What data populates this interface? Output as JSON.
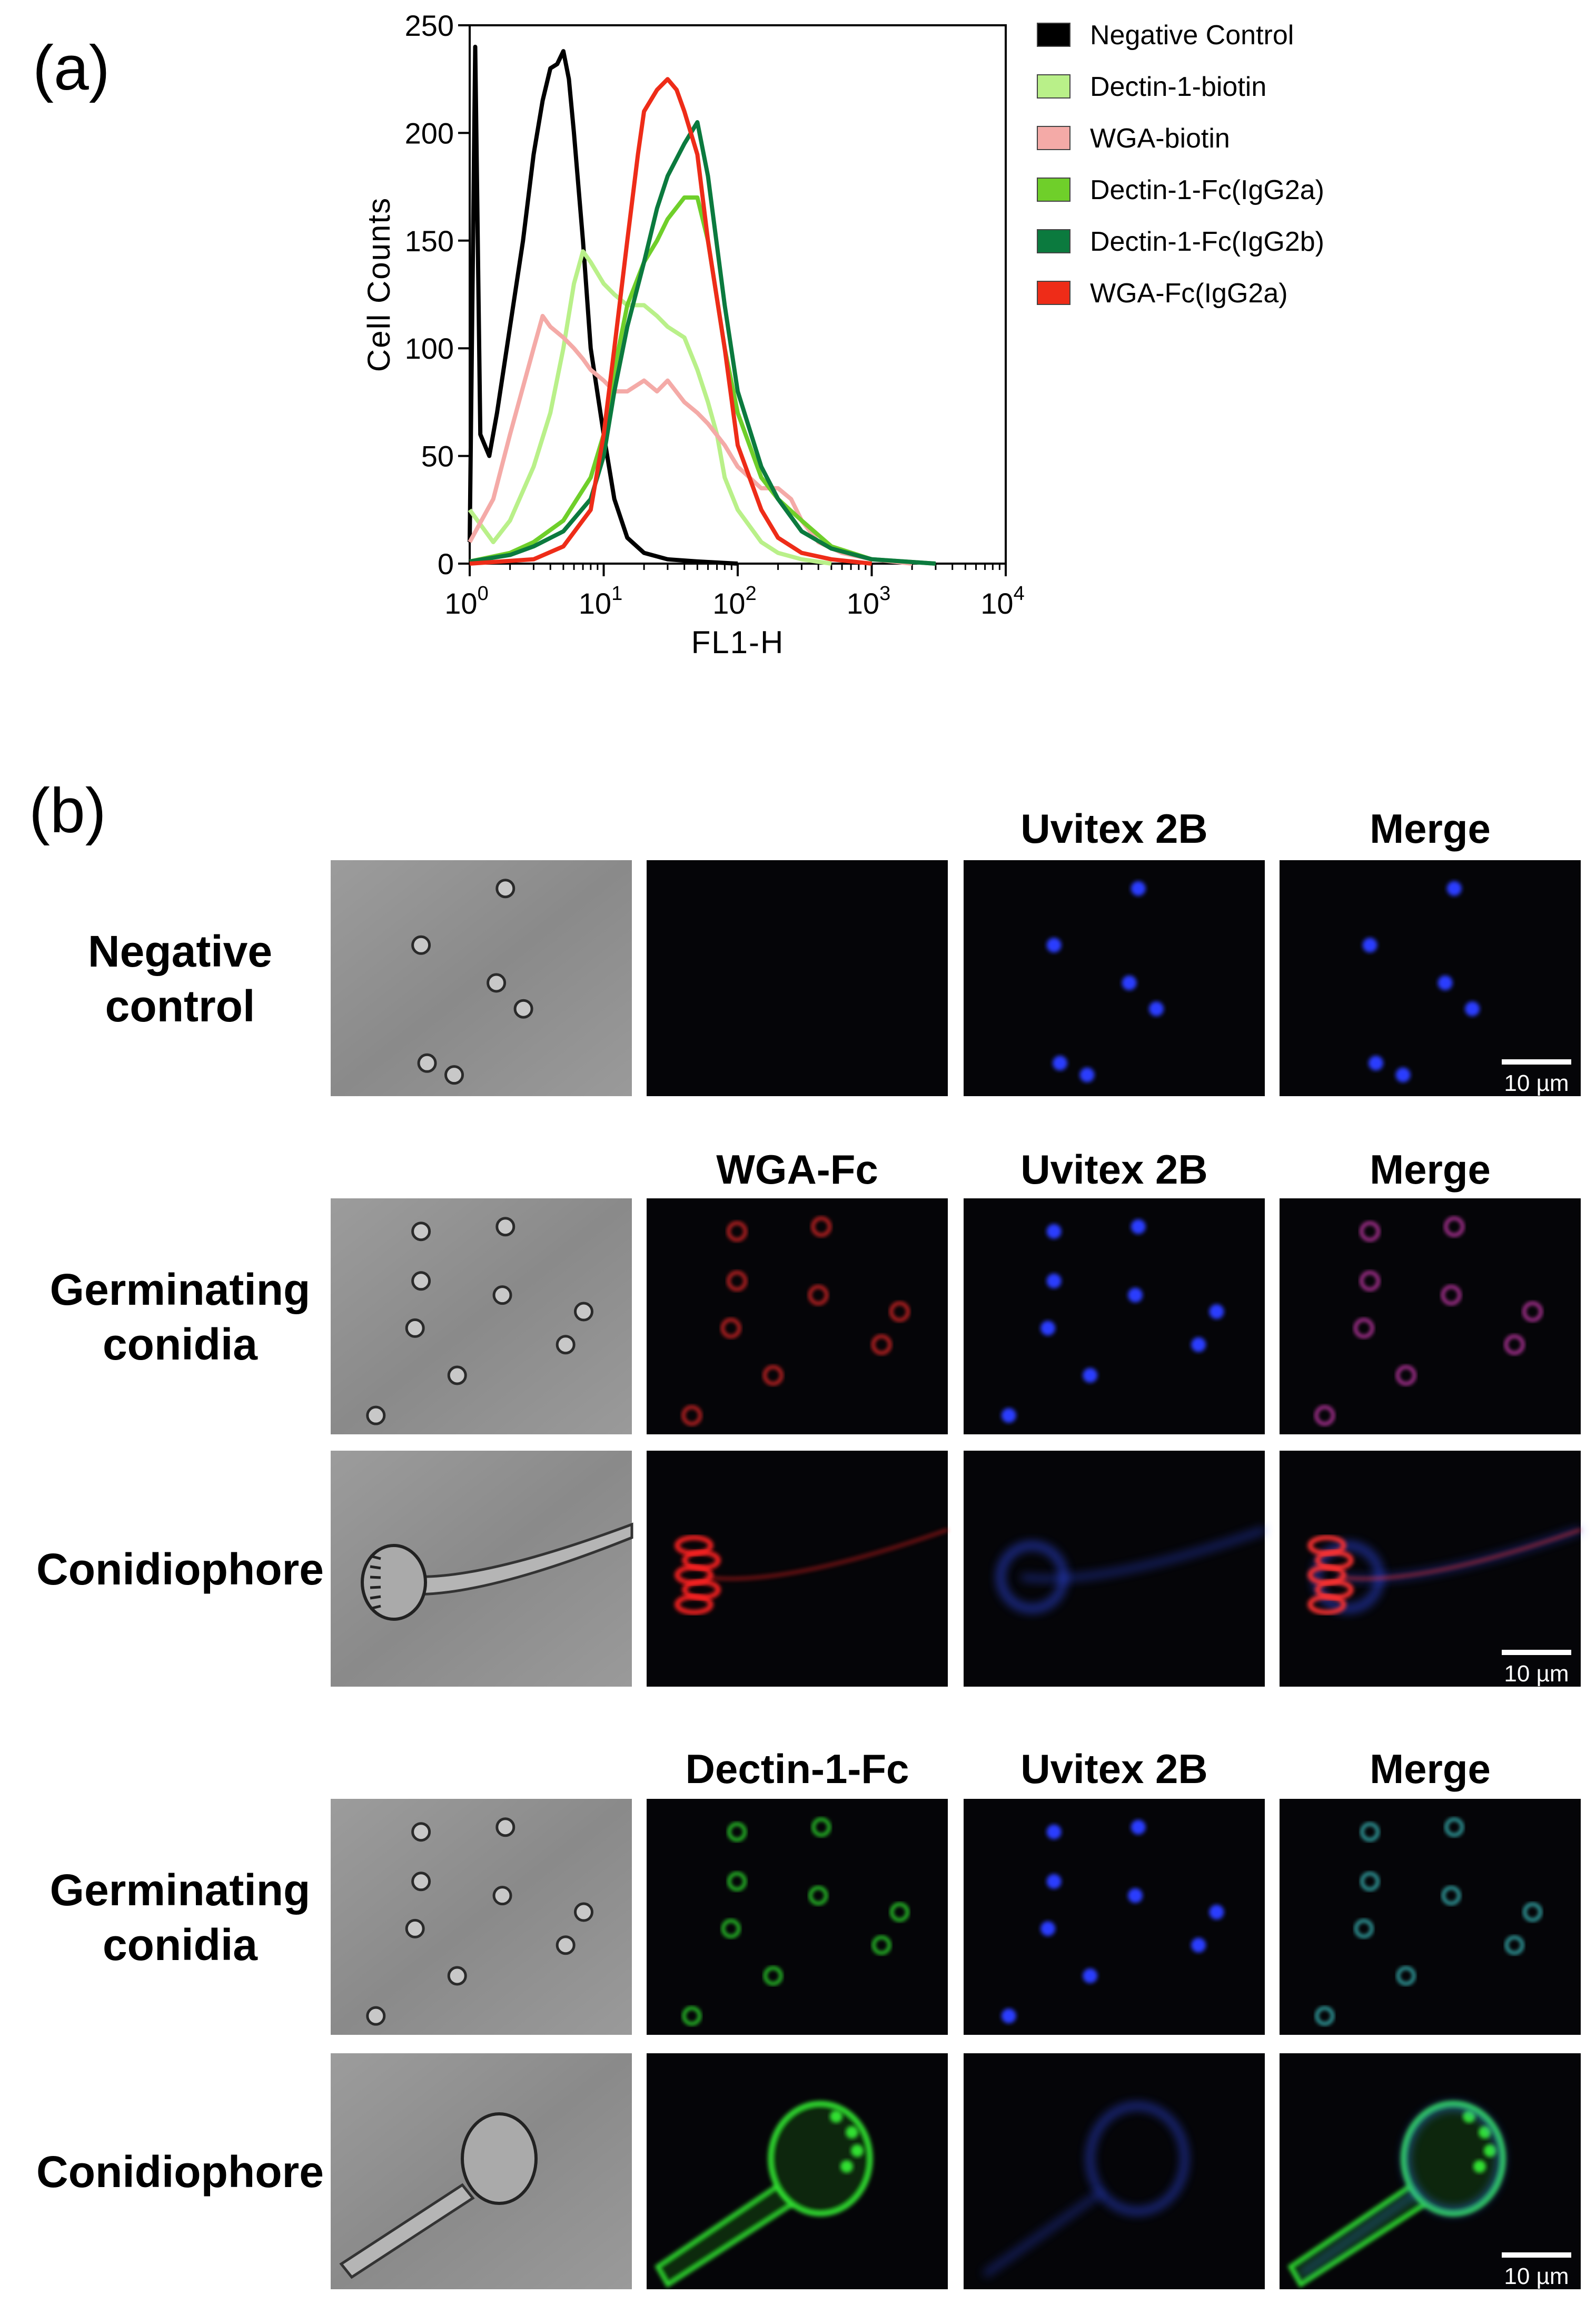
{
  "panel_a": {
    "label": "(a)",
    "chart_data": {
      "type": "line",
      "xlabel": "FL1-H",
      "ylabel": "Cell Counts",
      "xscale": "log",
      "xlim": [
        1,
        10000
      ],
      "ylim": [
        0,
        250
      ],
      "yticks": [
        "0",
        "50",
        "100",
        "150",
        "200",
        "250"
      ],
      "xticks": [
        {
          "base": "10",
          "exp": "0"
        },
        {
          "base": "10",
          "exp": "1"
        },
        {
          "base": "10",
          "exp": "2"
        },
        {
          "base": "10",
          "exp": "3"
        },
        {
          "base": "10",
          "exp": "4"
        }
      ],
      "legend_position": "right",
      "series": [
        {
          "name": "Negative Control",
          "color": "#000000",
          "points": [
            [
              1.0,
              10
            ],
            [
              1.1,
              240
            ],
            [
              1.2,
              60
            ],
            [
              1.4,
              50
            ],
            [
              1.6,
              70
            ],
            [
              2,
              110
            ],
            [
              2.5,
              150
            ],
            [
              3,
              190
            ],
            [
              3.5,
              215
            ],
            [
              4,
              230
            ],
            [
              4.5,
              232
            ],
            [
              5,
              238
            ],
            [
              5.5,
              225
            ],
            [
              6,
              200
            ],
            [
              7,
              150
            ],
            [
              8,
              100
            ],
            [
              10,
              60
            ],
            [
              12,
              30
            ],
            [
              15,
              12
            ],
            [
              20,
              5
            ],
            [
              30,
              2
            ],
            [
              50,
              1
            ],
            [
              100,
              0
            ]
          ]
        },
        {
          "name": "Dectin-1-biotin",
          "color": "#b9f089",
          "points": [
            [
              1,
              25
            ],
            [
              1.5,
              10
            ],
            [
              2,
              20
            ],
            [
              3,
              45
            ],
            [
              4,
              70
            ],
            [
              5,
              100
            ],
            [
              6,
              130
            ],
            [
              7,
              145
            ],
            [
              8,
              140
            ],
            [
              10,
              130
            ],
            [
              12,
              125
            ],
            [
              15,
              120
            ],
            [
              20,
              120
            ],
            [
              25,
              115
            ],
            [
              30,
              110
            ],
            [
              40,
              105
            ],
            [
              50,
              90
            ],
            [
              60,
              75
            ],
            [
              70,
              60
            ],
            [
              80,
              40
            ],
            [
              100,
              25
            ],
            [
              150,
              10
            ],
            [
              200,
              5
            ],
            [
              300,
              2
            ],
            [
              500,
              0
            ]
          ]
        },
        {
          "name": "WGA-biotin",
          "color": "#f4aaa7",
          "points": [
            [
              1,
              10
            ],
            [
              1.5,
              30
            ],
            [
              2,
              60
            ],
            [
              3,
              100
            ],
            [
              3.5,
              115
            ],
            [
              4,
              110
            ],
            [
              5,
              105
            ],
            [
              6,
              100
            ],
            [
              7,
              95
            ],
            [
              8,
              90
            ],
            [
              10,
              85
            ],
            [
              12,
              80
            ],
            [
              15,
              80
            ],
            [
              20,
              85
            ],
            [
              25,
              80
            ],
            [
              30,
              85
            ],
            [
              40,
              75
            ],
            [
              50,
              70
            ],
            [
              60,
              65
            ],
            [
              80,
              55
            ],
            [
              100,
              45
            ],
            [
              150,
              35
            ],
            [
              200,
              35
            ],
            [
              250,
              30
            ],
            [
              300,
              20
            ],
            [
              400,
              10
            ],
            [
              600,
              5
            ],
            [
              1000,
              2
            ],
            [
              2000,
              0
            ]
          ]
        },
        {
          "name": "Dectin-1-Fc(IgG2a)",
          "color": "#6fcf2a",
          "points": [
            [
              1,
              1
            ],
            [
              2,
              5
            ],
            [
              3,
              10
            ],
            [
              5,
              20
            ],
            [
              8,
              40
            ],
            [
              10,
              60
            ],
            [
              12,
              90
            ],
            [
              15,
              120
            ],
            [
              20,
              140
            ],
            [
              25,
              150
            ],
            [
              30,
              160
            ],
            [
              40,
              170
            ],
            [
              50,
              170
            ],
            [
              60,
              150
            ],
            [
              80,
              100
            ],
            [
              100,
              70
            ],
            [
              150,
              40
            ],
            [
              200,
              30
            ],
            [
              300,
              20
            ],
            [
              500,
              8
            ],
            [
              1000,
              2
            ],
            [
              3000,
              0
            ]
          ]
        },
        {
          "name": "Dectin-1-Fc(IgG2b)",
          "color": "#0b7a3e",
          "points": [
            [
              1,
              1
            ],
            [
              2,
              4
            ],
            [
              3,
              8
            ],
            [
              5,
              15
            ],
            [
              8,
              30
            ],
            [
              10,
              50
            ],
            [
              12,
              80
            ],
            [
              15,
              110
            ],
            [
              20,
              140
            ],
            [
              25,
              165
            ],
            [
              30,
              180
            ],
            [
              40,
              195
            ],
            [
              50,
              205
            ],
            [
              60,
              180
            ],
            [
              80,
              120
            ],
            [
              100,
              80
            ],
            [
              150,
              45
            ],
            [
              200,
              30
            ],
            [
              300,
              15
            ],
            [
              500,
              7
            ],
            [
              1000,
              2
            ],
            [
              3000,
              0
            ]
          ]
        },
        {
          "name": "WGA-Fc(IgG2a)",
          "color": "#ee2c18",
          "points": [
            [
              1,
              0
            ],
            [
              3,
              2
            ],
            [
              5,
              8
            ],
            [
              8,
              25
            ],
            [
              10,
              60
            ],
            [
              12,
              100
            ],
            [
              15,
              150
            ],
            [
              18,
              190
            ],
            [
              20,
              210
            ],
            [
              25,
              220
            ],
            [
              30,
              225
            ],
            [
              35,
              220
            ],
            [
              40,
              210
            ],
            [
              50,
              190
            ],
            [
              60,
              150
            ],
            [
              80,
              100
            ],
            [
              100,
              55
            ],
            [
              150,
              25
            ],
            [
              200,
              12
            ],
            [
              300,
              5
            ],
            [
              500,
              2
            ],
            [
              1000,
              0
            ]
          ]
        }
      ]
    }
  },
  "panel_b": {
    "label": "(b)",
    "scale_bar_label": "10 µm",
    "groups": [
      {
        "headers": [
          "",
          "",
          "Uvitex 2B",
          "Merge"
        ],
        "rows": [
          {
            "label_lines": [
              "Negative",
              "control"
            ],
            "scale_bar": true,
            "panels": [
              "bf-conidia",
              "dark",
              "blue-conidia",
              "merge-blue"
            ]
          }
        ]
      },
      {
        "headers": [
          "",
          "WGA-Fc",
          "Uvitex 2B",
          "Merge"
        ],
        "rows": [
          {
            "label_lines": [
              "Germinating",
              "conidia"
            ],
            "scale_bar": false,
            "panels": [
              "bf-conidia",
              "red-conidia",
              "blue-conidia",
              "merge-red"
            ]
          },
          {
            "label_lines": [
              "Conidiophore"
            ],
            "scale_bar": true,
            "panels": [
              "bf-conidiophore",
              "red-conidiophore",
              "blue-conidiophore",
              "merge-red-conidiophore"
            ]
          }
        ]
      },
      {
        "headers": [
          "",
          "Dectin-1-Fc",
          "Uvitex 2B",
          "Merge"
        ],
        "rows": [
          {
            "label_lines": [
              "Germinating",
              "conidia"
            ],
            "scale_bar": false,
            "panels": [
              "bf-conidia",
              "green-conidia",
              "blue-conidia",
              "merge-green"
            ]
          },
          {
            "label_lines": [
              "Conidiophore"
            ],
            "scale_bar": true,
            "panels": [
              "bf-conidiophore2",
              "green-conidiophore",
              "blue-conidiophore2",
              "merge-green-conidiophore"
            ]
          }
        ]
      }
    ]
  }
}
